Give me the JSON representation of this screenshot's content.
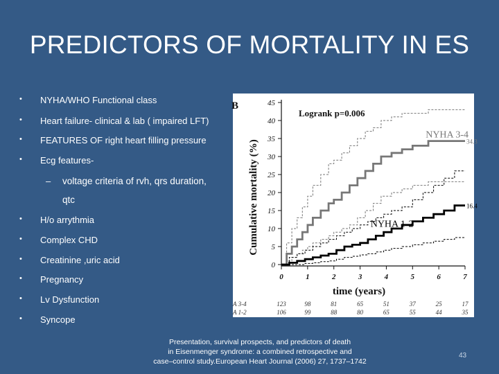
{
  "slide": {
    "title": "PREDICTORS OF MORTALITY IN ES",
    "bullet_symbol": "•",
    "dash_symbol": "–",
    "bullets": [
      "NYHA/WHO Functional class",
      "Heart failure- clinical & lab ( impaired LFT)",
      "FEATURES OF right heart filling pressure",
      "Ecg features-"
    ],
    "sub_bullet_line1": "voltage criteria of rvh, qrs duration,",
    "sub_bullet_line2": "qtc",
    "bullets2": [
      "H/o arrythmia",
      "Complex CHD",
      "Creatinine ,uric acid",
      "Pregnancy",
      "Lv Dysfunction",
      "Syncope"
    ],
    "citation_line1": "Presentation, survival prospects, and predictors of death",
    "citation_line2": "in Eisenmenger syndrome: a combined retrospective and",
    "citation_line3": "case–control study.European Heart Journal (2006) 27, 1737–1742",
    "page_number": "43"
  },
  "chart_data": {
    "type": "line",
    "panel_label": "B",
    "annotation": "Logrank p=0.006",
    "ylabel": "Cumulative mortality (%)",
    "xlabel": "time (years)",
    "ylim": [
      0,
      45
    ],
    "xlim": [
      0,
      7
    ],
    "y_ticks": [
      0,
      5,
      10,
      15,
      20,
      25,
      30,
      35,
      40,
      45
    ],
    "x_ticks": [
      0,
      1,
      2,
      3,
      4,
      5,
      6,
      7
    ],
    "series": [
      {
        "name": "NYHA 3-4",
        "end_label": "34.3",
        "color": "#777777",
        "x": [
          0,
          0.2,
          0.4,
          0.6,
          0.8,
          1.0,
          1.2,
          1.5,
          1.8,
          2.0,
          2.3,
          2.6,
          2.9,
          3.2,
          3.5,
          3.8,
          4.2,
          4.6,
          5.0,
          5.6,
          6.2,
          7.0
        ],
        "y": [
          0,
          3,
          5,
          7,
          9,
          11,
          13,
          15,
          17,
          18,
          20,
          22,
          24,
          26,
          28,
          30,
          31,
          32,
          33,
          34.3,
          34.3,
          34.3
        ],
        "ci_upper": [
          0,
          6,
          10,
          13,
          16,
          19,
          22,
          25,
          28,
          29,
          31,
          33,
          35,
          37,
          38,
          40,
          41,
          42,
          42,
          43,
          43,
          43
        ],
        "ci_lower": [
          0,
          1,
          2,
          3,
          4,
          5,
          6,
          7,
          8,
          9,
          10,
          11,
          13,
          15,
          17,
          19,
          20,
          21,
          22,
          23,
          23,
          23
        ]
      },
      {
        "name": "NYHA 1-2",
        "end_label": "16.4",
        "color": "#000000",
        "x": [
          0,
          0.3,
          0.6,
          0.9,
          1.2,
          1.5,
          1.8,
          2.1,
          2.4,
          2.7,
          3.0,
          3.3,
          3.6,
          3.9,
          4.2,
          4.6,
          5.0,
          5.4,
          5.8,
          6.2,
          6.6,
          7.0
        ],
        "y": [
          0,
          0.5,
          1,
          1.5,
          2,
          2.5,
          3,
          4,
          5,
          5.5,
          6,
          7,
          8,
          9,
          10,
          11,
          12,
          13,
          14,
          15,
          16.4,
          16.4
        ],
        "ci_upper": [
          0,
          2,
          3,
          4,
          5,
          6,
          7,
          8,
          9,
          10,
          11,
          12,
          13,
          14,
          15,
          16,
          18,
          20,
          22,
          24,
          26,
          26
        ],
        "ci_lower": [
          0,
          0,
          0,
          0.3,
          0.5,
          0.8,
          1,
          1.5,
          2,
          2.3,
          2.7,
          3,
          3.5,
          4,
          4.5,
          5,
          5.5,
          6,
          6.5,
          7,
          7.5,
          7.5
        ]
      }
    ],
    "risk_table": [
      {
        "label": "A 3-4",
        "values": [
          "123",
          "98",
          "81",
          "65",
          "51",
          "37",
          "25",
          "17"
        ]
      },
      {
        "label": "A 1-2",
        "values": [
          "106",
          "99",
          "88",
          "80",
          "65",
          "55",
          "44",
          "35"
        ]
      }
    ]
  }
}
